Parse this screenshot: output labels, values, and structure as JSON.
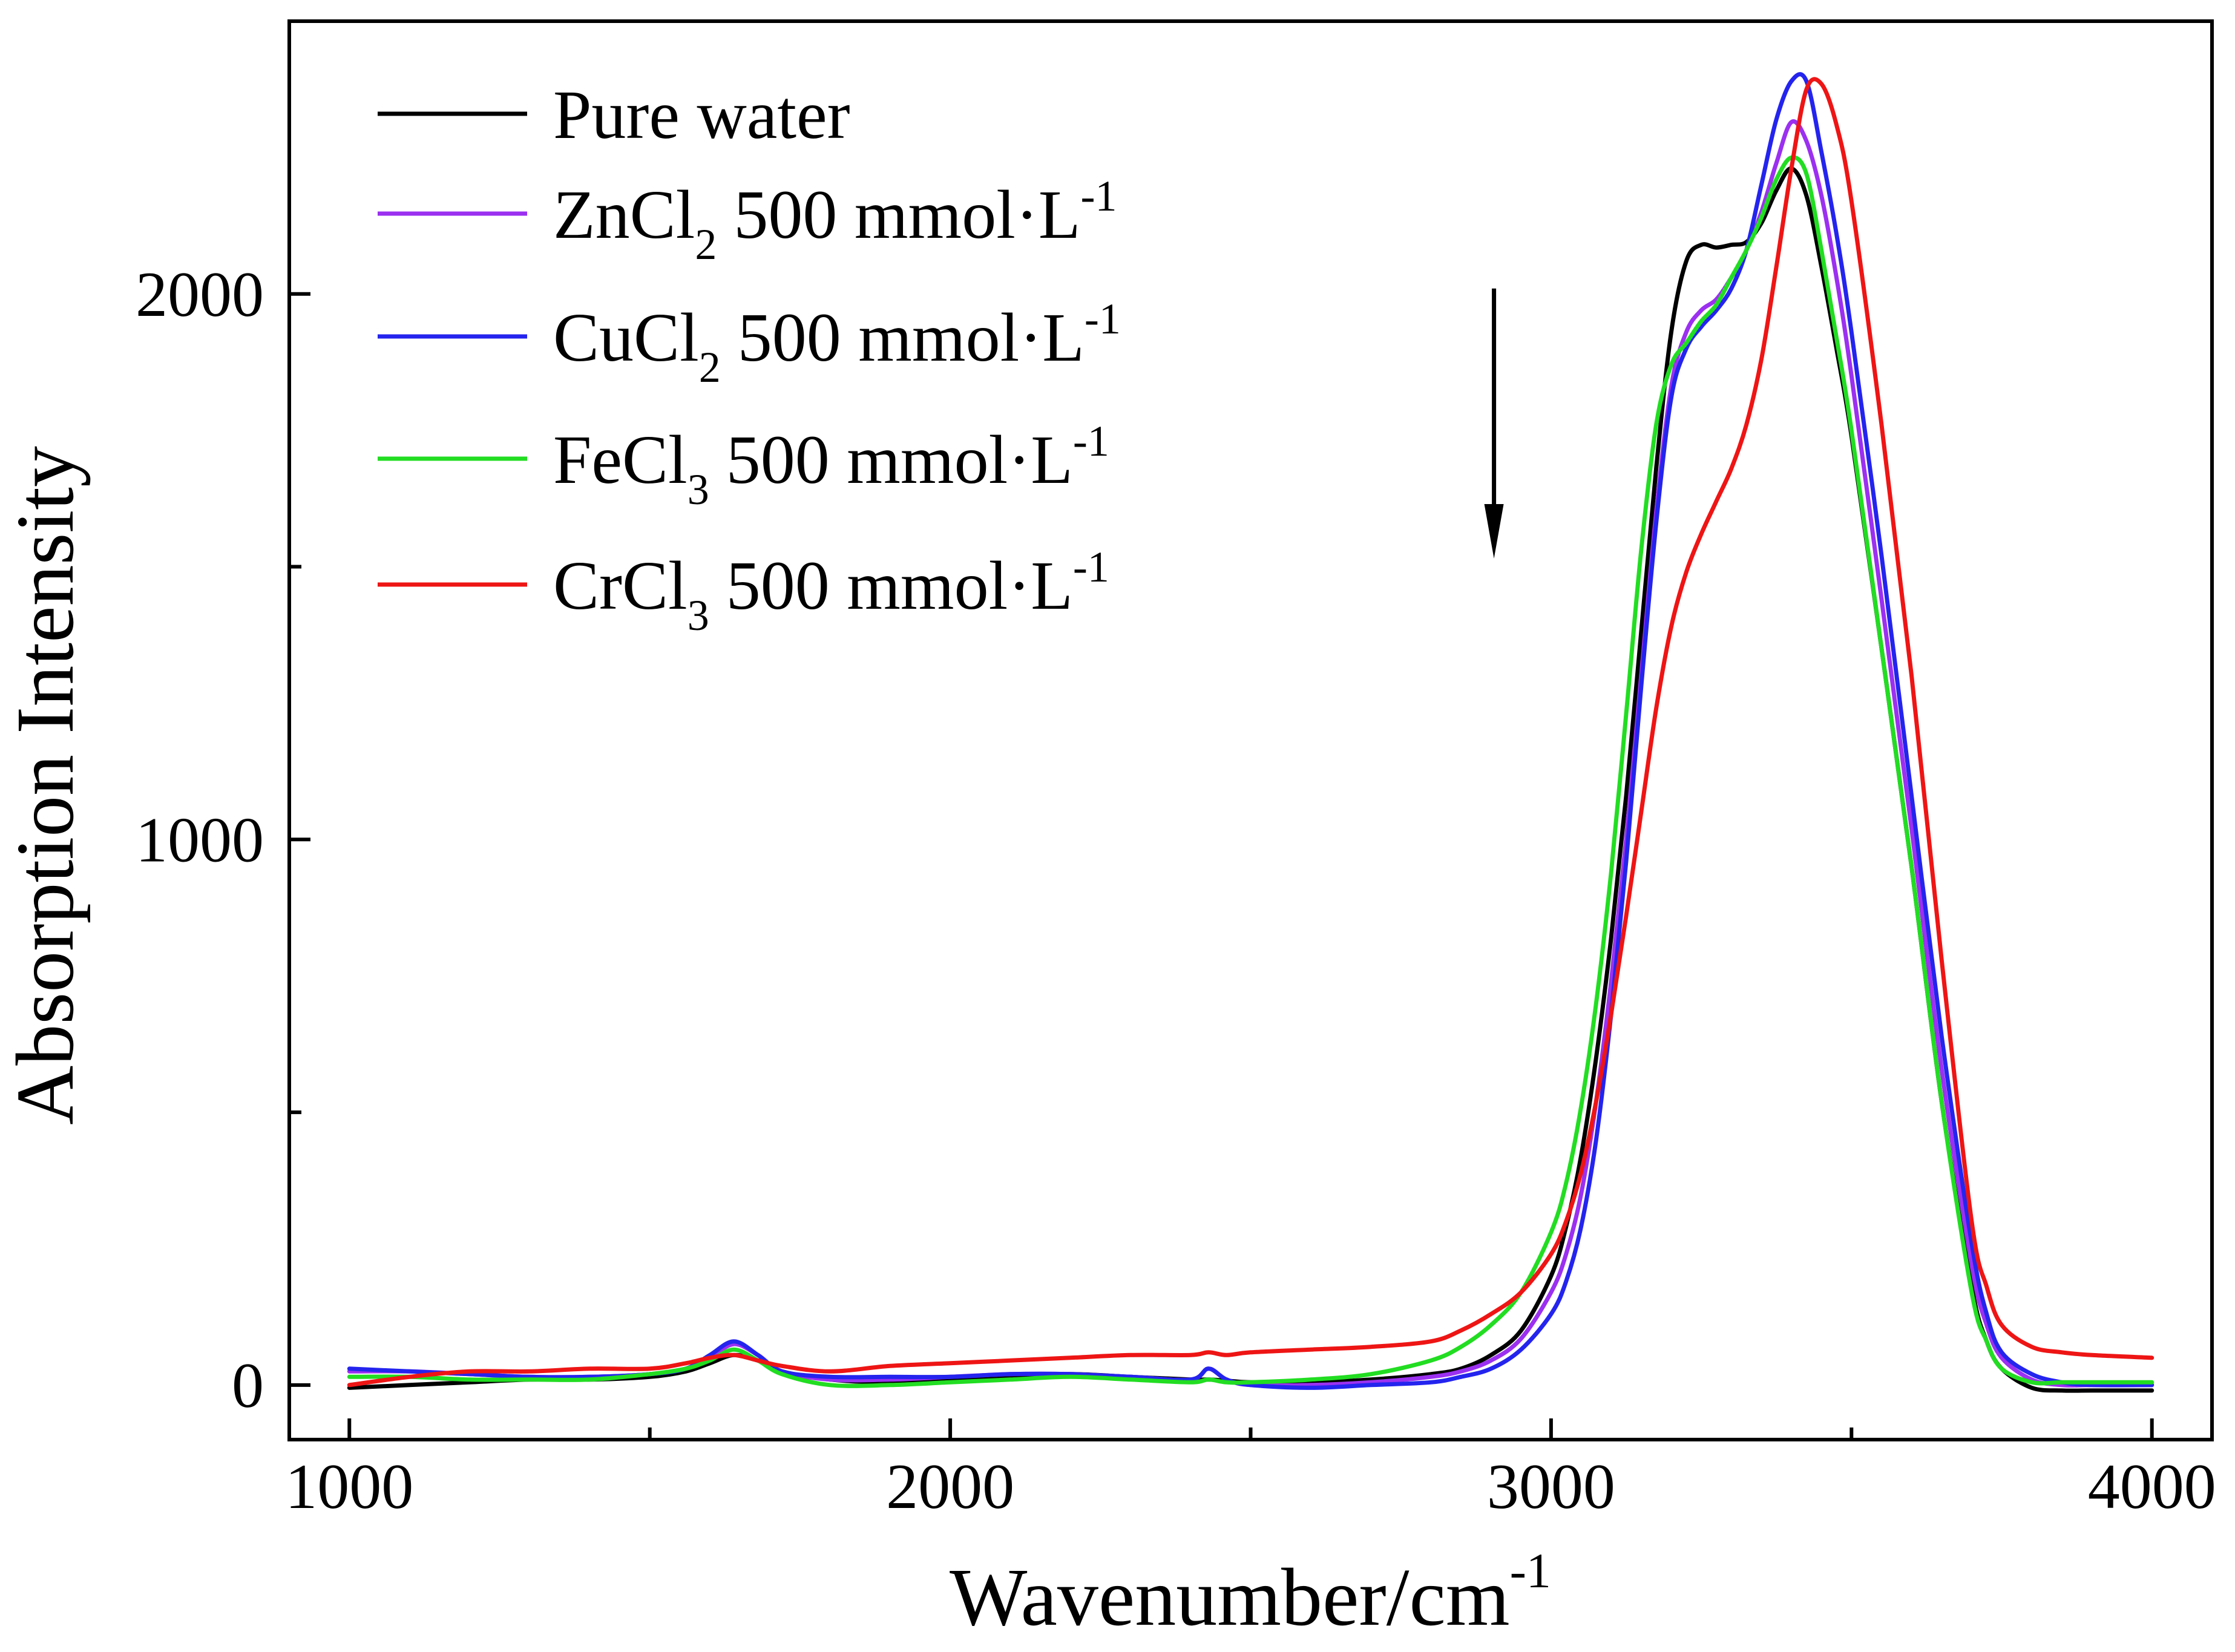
{
  "chart_data": {
    "type": "line",
    "xlabel": "Wavenumber/cm",
    "xlabel_sup": "-1",
    "ylabel": "Absorption Intensity",
    "xlim": [
      900,
      4100
    ],
    "ylim": [
      -100,
      2500
    ],
    "x_ticks": [
      1000,
      2000,
      3000,
      4000
    ],
    "x_tick_labels": [
      "1000",
      "2000",
      "3000",
      "4000"
    ],
    "x_minor_ticks": [
      1500,
      2500,
      3500
    ],
    "y_ticks": [
      0,
      1000,
      2000
    ],
    "y_tick_labels": [
      "0",
      "1000",
      "2000"
    ],
    "y_minor_ticks": [
      500,
      1500
    ],
    "grid": false,
    "legend_position": "top-left",
    "x": [
      1000,
      1100,
      1200,
      1300,
      1400,
      1500,
      1560,
      1600,
      1640,
      1680,
      1720,
      1800,
      1900,
      2000,
      2100,
      2200,
      2300,
      2400,
      2430,
      2460,
      2500,
      2600,
      2700,
      2800,
      2850,
      2900,
      2950,
      3000,
      3025,
      3050,
      3075,
      3100,
      3125,
      3150,
      3175,
      3200,
      3225,
      3250,
      3275,
      3300,
      3325,
      3350,
      3375,
      3400,
      3425,
      3450,
      3475,
      3500,
      3550,
      3600,
      3650,
      3700,
      3725,
      3750,
      3800,
      3850,
      3900,
      4000
    ],
    "series": [
      {
        "label": {
          "main": "Pure water"
        },
        "color": "#000000",
        "values": [
          -5,
          0,
          5,
          10,
          10,
          15,
          25,
          40,
          55,
          45,
          25,
          10,
          5,
          10,
          15,
          20,
          15,
          10,
          10,
          8,
          5,
          5,
          10,
          20,
          30,
          55,
          100,
          200,
          290,
          420,
          600,
          820,
          1080,
          1380,
          1680,
          1930,
          2060,
          2090,
          2085,
          2090,
          2095,
          2130,
          2190,
          2230,
          2180,
          2050,
          1900,
          1740,
          1350,
          950,
          520,
          180,
          80,
          30,
          -5,
          -10,
          -10,
          -10
        ]
      },
      {
        "label": {
          "main": "ZnCl",
          "sub": "2",
          "rest": "500 mmol·L",
          "sup": "-1"
        },
        "color": "#9b30f0",
        "values": [
          25,
          25,
          20,
          15,
          15,
          20,
          30,
          50,
          75,
          55,
          25,
          10,
          10,
          15,
          20,
          20,
          15,
          10,
          30,
          10,
          0,
          0,
          5,
          15,
          25,
          45,
          85,
          170,
          240,
          350,
          520,
          740,
          1000,
          1300,
          1600,
          1830,
          1930,
          1970,
          1990,
          2030,
          2080,
          2150,
          2240,
          2315,
          2280,
          2180,
          2030,
          1850,
          1440,
          1020,
          580,
          220,
          110,
          50,
          10,
          0,
          0,
          0
        ]
      },
      {
        "label": {
          "main": "CuCl",
          "sub": "2",
          "rest": "500 mmol·L",
          "sup": "-1"
        },
        "color": "#2424ee",
        "values": [
          30,
          25,
          20,
          15,
          15,
          20,
          30,
          55,
          80,
          55,
          25,
          15,
          15,
          15,
          20,
          20,
          15,
          10,
          30,
          10,
          0,
          -5,
          0,
          5,
          15,
          30,
          65,
          130,
          190,
          290,
          450,
          680,
          960,
          1280,
          1580,
          1810,
          1900,
          1940,
          1970,
          2010,
          2080,
          2200,
          2320,
          2390,
          2390,
          2260,
          2110,
          1930,
          1520,
          1080,
          640,
          260,
          130,
          60,
          20,
          5,
          0,
          0
        ]
      },
      {
        "label": {
          "main": "FeCl",
          "sub": "3",
          "rest": "500 mmol·L",
          "sup": "-1"
        },
        "color": "#22dd22",
        "values": [
          15,
          15,
          10,
          10,
          10,
          20,
          30,
          45,
          65,
          45,
          20,
          0,
          0,
          5,
          10,
          15,
          10,
          5,
          10,
          5,
          5,
          10,
          20,
          45,
          70,
          110,
          170,
          280,
          370,
          510,
          700,
          940,
          1230,
          1530,
          1760,
          1870,
          1910,
          1950,
          1980,
          2030,
          2080,
          2140,
          2210,
          2250,
          2220,
          2080,
          1920,
          1750,
          1350,
          950,
          520,
          170,
          80,
          30,
          5,
          5,
          5,
          5
        ]
      },
      {
        "label": {
          "main": "CrCl",
          "sub": "3",
          "rest": "500 mmol·L",
          "sup": "-1"
        },
        "color": "#ee1515",
        "values": [
          0,
          15,
          25,
          25,
          30,
          30,
          40,
          50,
          55,
          45,
          35,
          25,
          35,
          40,
          45,
          50,
          55,
          55,
          60,
          55,
          60,
          65,
          70,
          80,
          100,
          130,
          170,
          240,
          300,
          390,
          520,
          680,
          860,
          1050,
          1240,
          1390,
          1490,
          1560,
          1620,
          1680,
          1760,
          1880,
          2050,
          2230,
          2375,
          2385,
          2310,
          2170,
          1760,
          1300,
          780,
          300,
          180,
          110,
          70,
          60,
          55,
          50
        ]
      }
    ],
    "arrow": {
      "x": 2905,
      "y_from": 2010,
      "y_to": 1515
    }
  }
}
